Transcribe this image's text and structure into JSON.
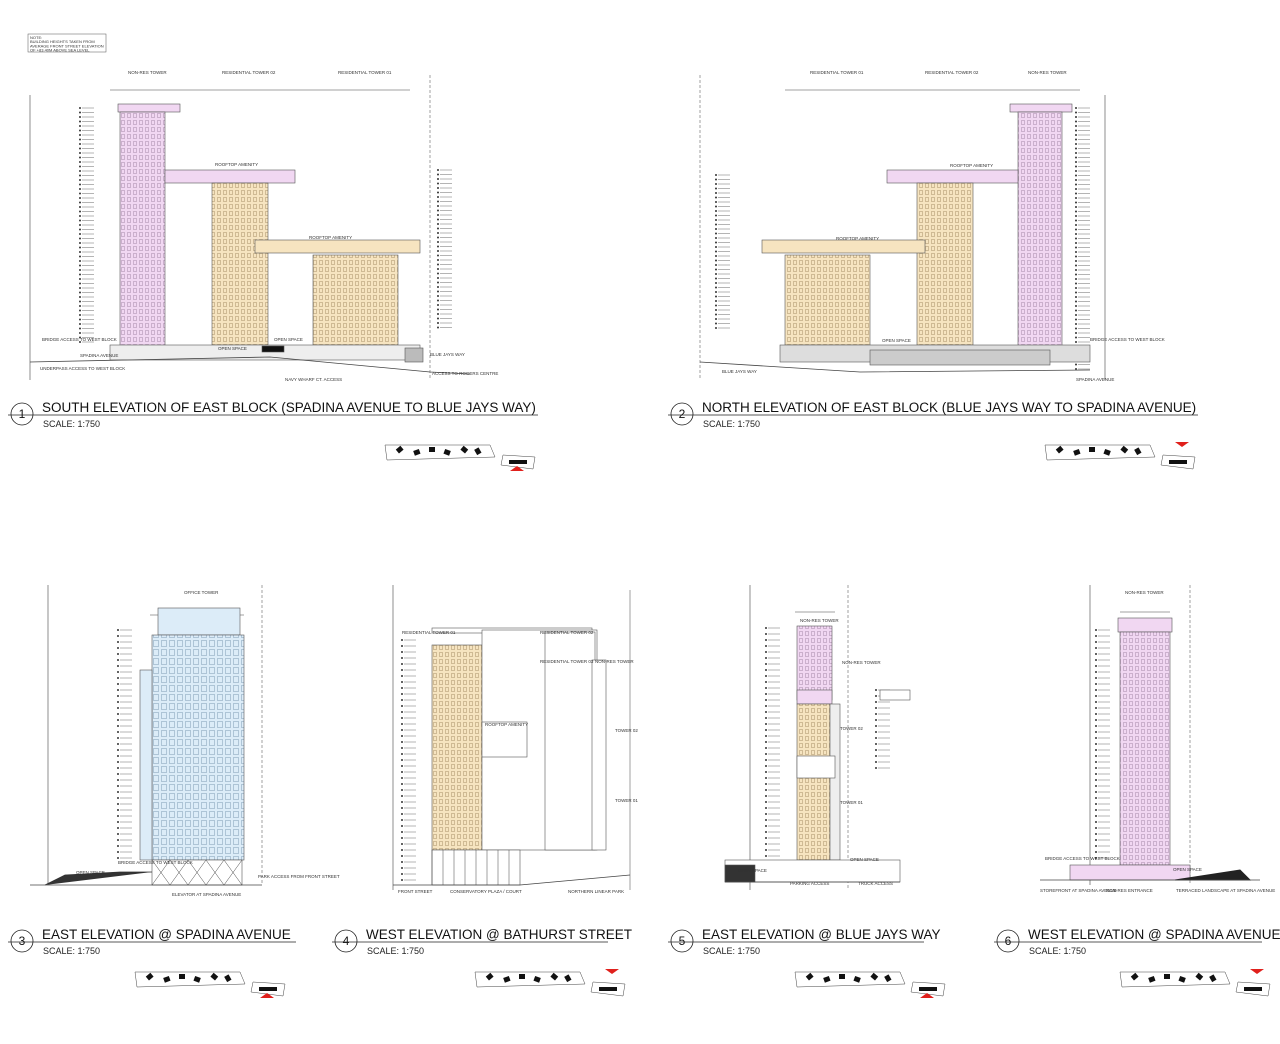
{
  "note": [
    "NOTE:",
    "BUILDING HEIGHTS TAKEN FROM",
    "AVERAGE FRONT STREET ELEVATION",
    "OF +83.40M ABOVE SEA LEVEL"
  ],
  "panels": [
    {
      "number": "1",
      "title": "SOUTH ELEVATION OF EAST BLOCK (SPADINA AVENUE TO BLUE JAYS WAY)",
      "scale": "SCALE: 1:750",
      "labels": [
        "NON-RES TOWER",
        "RESIDENTIAL TOWER 02",
        "RESIDENTIAL TOWER 01",
        "ROOFTOP AMENITY",
        "ROOFTOP AMENITY",
        "BRIDGE ACCESS TO WEST BLOCK",
        "SPADINA AVENUE",
        "UNDERPASS ACCESS TO WEST BLOCK",
        "OPEN SPACE",
        "OPEN SPACE",
        "BLUE JAYS WAY",
        "ACCESS TO ROGERS CENTRE",
        "NAVY WHARF CT. ACCESS"
      ]
    },
    {
      "number": "2",
      "title": "NORTH ELEVATION OF EAST BLOCK (BLUE JAYS WAY TO SPADINA AVENUE)",
      "scale": "SCALE: 1:750",
      "labels": [
        "RESIDENTIAL TOWER 01",
        "RESIDENTIAL TOWER 02",
        "NON-RES TOWER",
        "ROOFTOP AMENITY",
        "ROOFTOP AMENITY",
        "OPEN SPACE",
        "BRIDGE ACCESS TO WEST BLOCK",
        "BLUE JAYS WAY",
        "SPADINA AVENUE"
      ]
    },
    {
      "number": "3",
      "title": "EAST ELEVATION @ SPADINA AVENUE",
      "scale": "SCALE: 1:750",
      "labels": [
        "OFFICE TOWER",
        "OPEN SPACE",
        "BRIDGE ACCESS TO WEST BLOCK",
        "PARK ACCESS FROM FRONT STREET",
        "ELEVATOR AT SPADINA AVENUE"
      ]
    },
    {
      "number": "4",
      "title": "WEST ELEVATION @ BATHURST STREET",
      "scale": "SCALE: 1:750",
      "labels": [
        "RESIDENTIAL TOWER 01",
        "RESIDENTIAL TOWER 02",
        "RESIDENTIAL TOWER 03",
        "NON-RES TOWER",
        "ROOFTOP AMENITY",
        "TOWER 02",
        "TOWER 01",
        "FRONT STREET",
        "CONSERVATORY PLAZA / COURT",
        "NORTHERN LINEAR PARK"
      ]
    },
    {
      "number": "5",
      "title": "EAST ELEVATION @ BLUE JAYS WAY",
      "scale": "SCALE: 1:750",
      "labels": [
        "NON-RES TOWER",
        "NON-RES TOWER",
        "TOWER 02",
        "TOWER 01",
        "OPEN SPACE",
        "OPEN SPACE",
        "PARKING ACCESS",
        "TRUCK ACCESS"
      ]
    },
    {
      "number": "6",
      "title": "WEST ELEVATION @ SPADINA AVENUE",
      "scale": "SCALE: 1:750",
      "labels": [
        "NON-RES TOWER",
        "BRIDGE ACCESS TO WEST BLOCK",
        "OPEN SPACE",
        "STOREFRONT AT SPADINA AVENUE",
        "NON-RES ENTRANCE",
        "TERRACED LANDSCAPE AT SPADINA AVENUE"
      ]
    }
  ]
}
